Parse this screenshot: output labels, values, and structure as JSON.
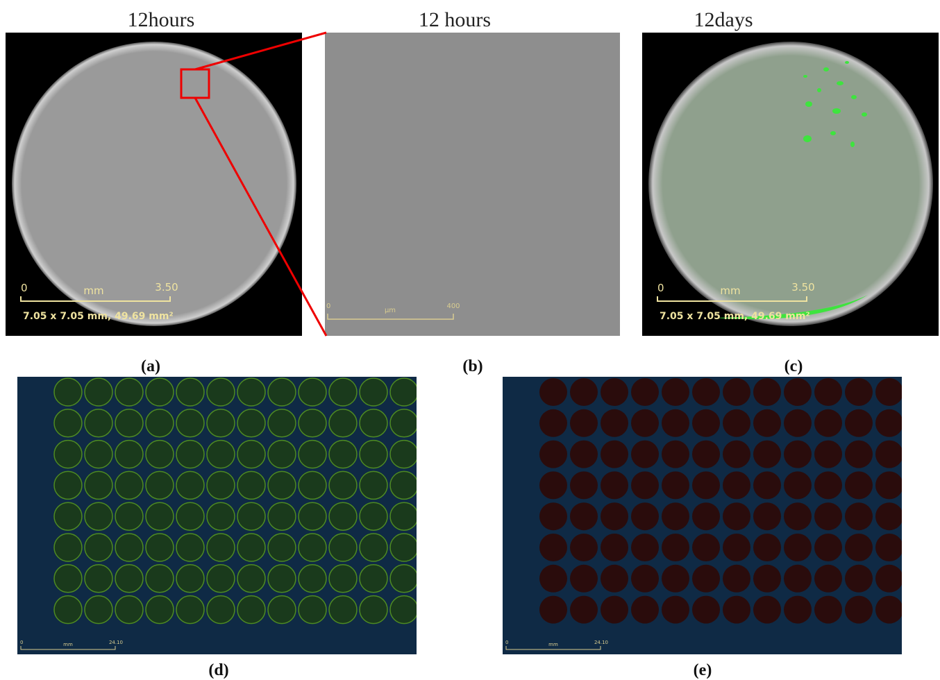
{
  "titles": [
    "12hours",
    "12 hours",
    "12days"
  ],
  "panel_labels": [
    "(a)",
    "(b)",
    "(c)",
    "(d)",
    "(e)"
  ],
  "scale_a": {
    "start": "0",
    "unit": "mm",
    "end": "3.50",
    "caption": "7.05 x 7.05 mm, 49.69 mm²"
  },
  "scale_b": {
    "start": "0",
    "unit": "µm",
    "end": "400"
  },
  "scale_c": {
    "start": "0",
    "unit": "mm",
    "end": "3.50",
    "caption": "7.05 x 7.05 mm, 49.69 mm²"
  },
  "scale_d": {
    "start": "0",
    "unit": "mm",
    "end": "24.10"
  },
  "scale_e": {
    "start": "0",
    "unit": "mm",
    "end": "24.10"
  }
}
